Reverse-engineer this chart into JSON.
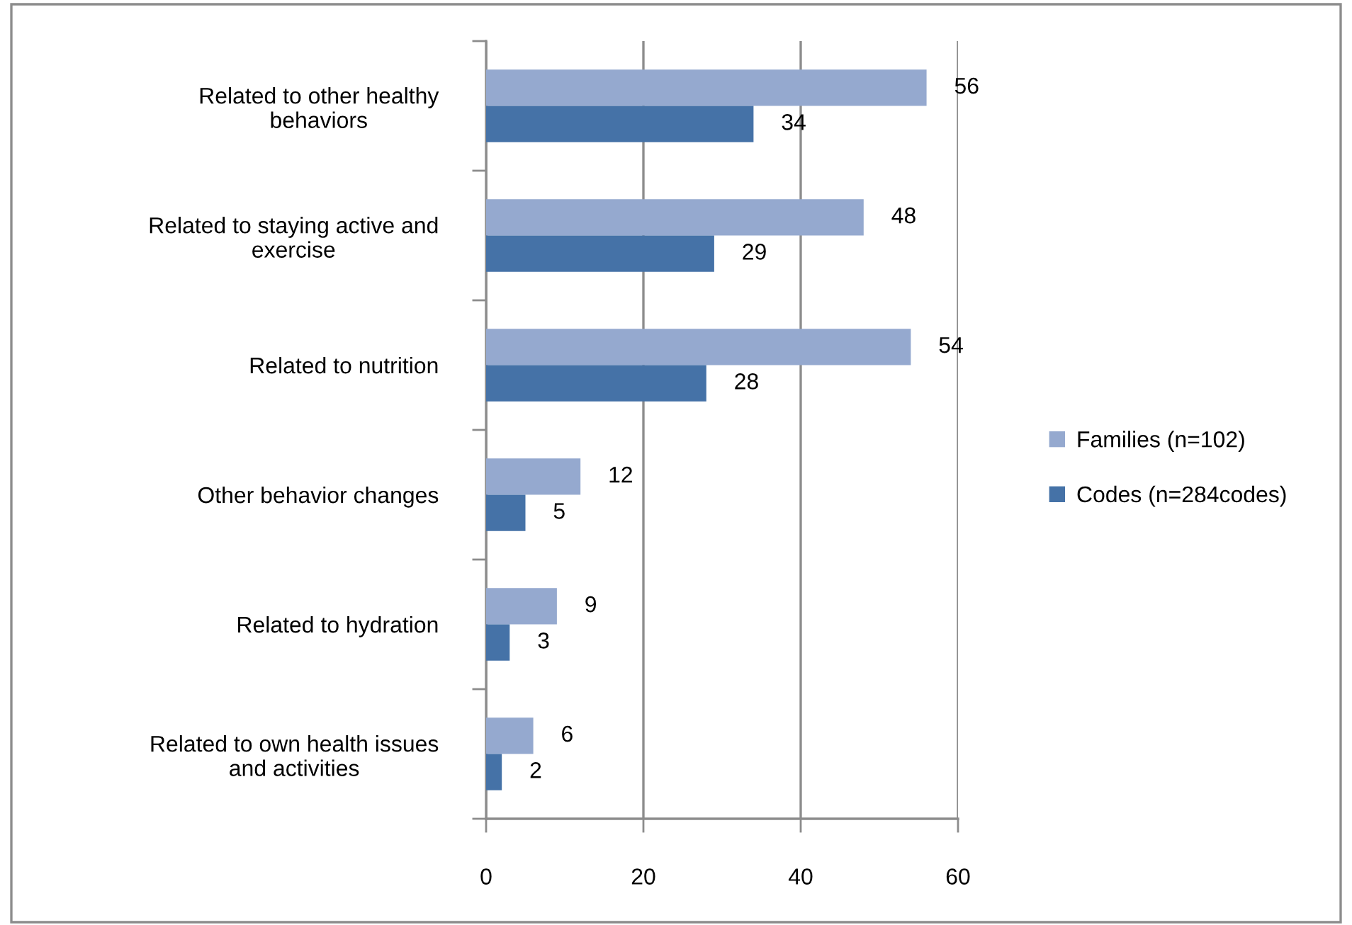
{
  "chart_data": {
    "type": "bar",
    "orientation": "horizontal",
    "categories": [
      "Related to other healthy\nbehaviors",
      "Related to staying active and\nexercise",
      "Related to nutrition",
      "Other behavior changes",
      "Related to hydration",
      "Related to own health issues\nand activities"
    ],
    "series": [
      {
        "name": "Families (n=102)",
        "color": "#95a9cf",
        "values": [
          56,
          48,
          54,
          12,
          9,
          6
        ]
      },
      {
        "name": "Codes (n=284codes)",
        "color": "#4572a7",
        "values": [
          34,
          29,
          28,
          5,
          3,
          2
        ]
      }
    ],
    "xlim": [
      0,
      60
    ],
    "xticks": [
      0,
      20,
      40,
      60
    ],
    "grid": "x",
    "legend": "right",
    "data_labels": true
  }
}
